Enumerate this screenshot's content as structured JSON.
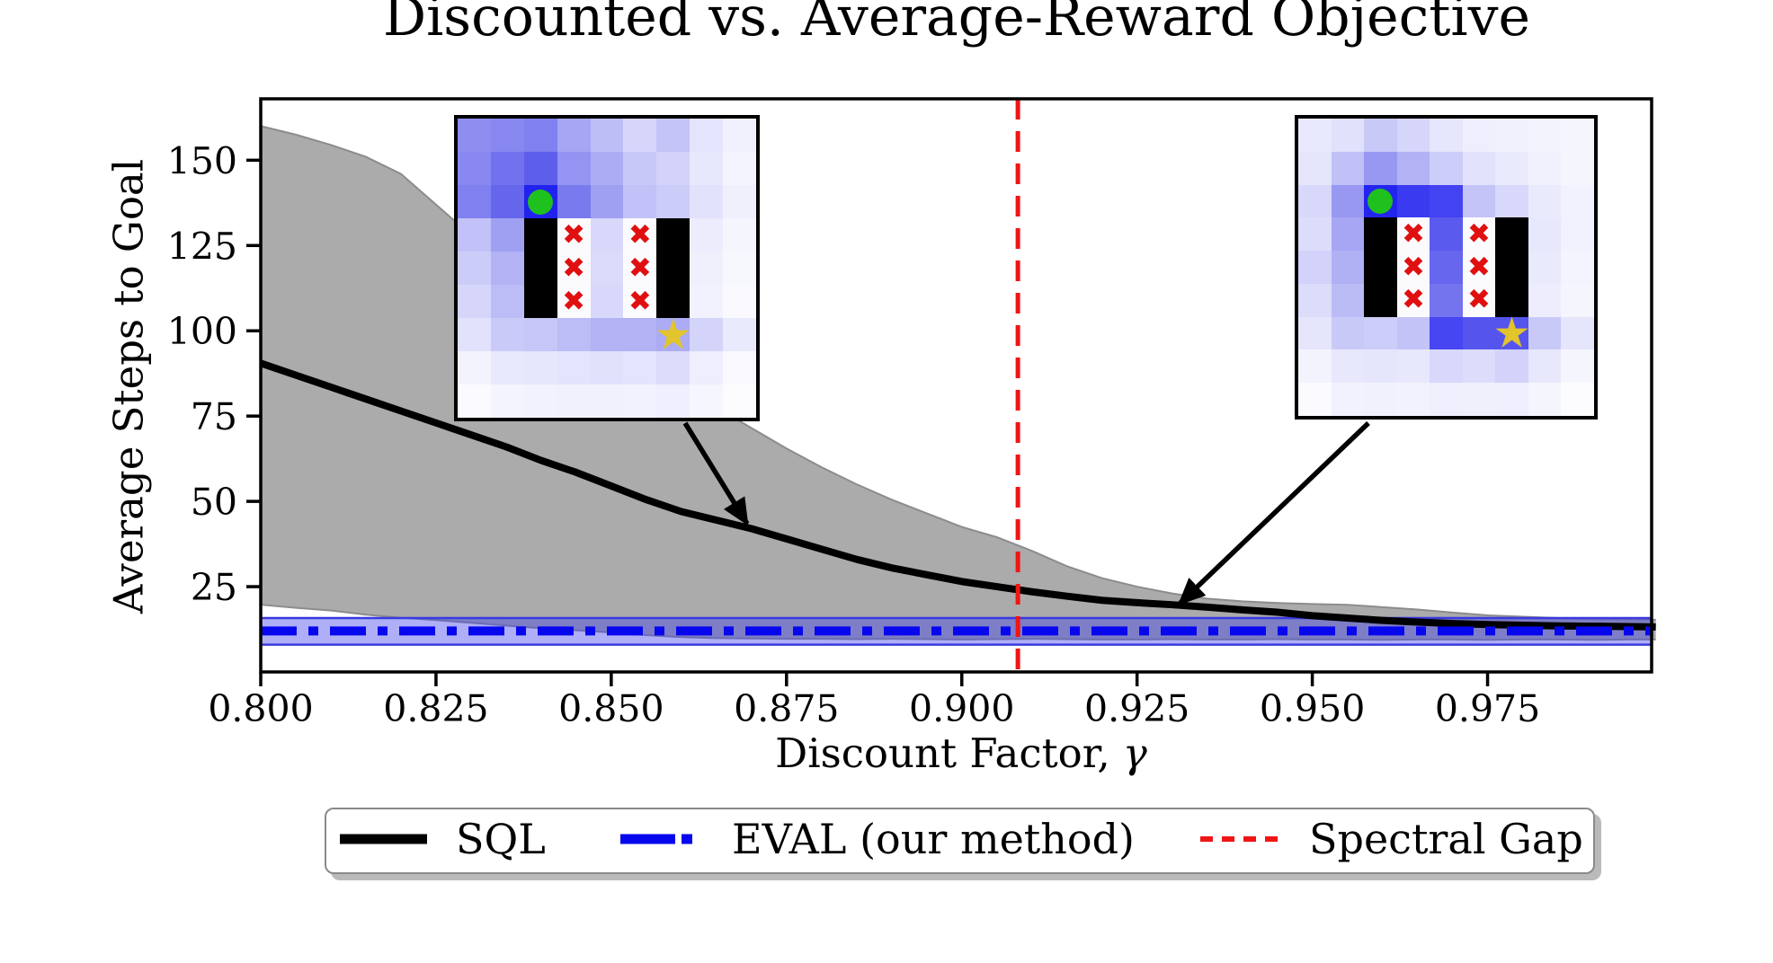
{
  "title": "Discounted vs. Average-Reward Objective",
  "axes": {
    "xlabel_text": "Discount Factor, ",
    "xlabel_gamma": "γ",
    "ylabel": "Average Steps to Goal",
    "x_ticks": [
      "0.800",
      "0.825",
      "0.850",
      "0.875",
      "0.900",
      "0.925",
      "0.950",
      "0.975"
    ],
    "y_ticks": [
      "25",
      "50",
      "75",
      "100",
      "125",
      "150"
    ]
  },
  "legend": {
    "items": [
      {
        "label": "SQL",
        "color": "#000000",
        "style": "solid"
      },
      {
        "label": "EVAL (our method)",
        "color": "#0707ee",
        "style": "dashdot"
      },
      {
        "label": "Spectral Gap",
        "color": "#f01515",
        "style": "dashed"
      }
    ]
  },
  "chart_data": {
    "type": "line",
    "title": "Discounted vs. Average-Reward Objective",
    "xlabel": "Discount Factor, γ",
    "ylabel": "Average Steps to Goal",
    "xlim": [
      0.8,
      0.9984
    ],
    "ylim": [
      0,
      168
    ],
    "grid": false,
    "legend_position": "bottom",
    "x_ticks": [
      0.8,
      0.825,
      0.85,
      0.875,
      0.9,
      0.925,
      0.95,
      0.975
    ],
    "y_ticks": [
      25,
      50,
      75,
      100,
      125,
      150
    ],
    "x": [
      0.8,
      0.805,
      0.81,
      0.815,
      0.82,
      0.825,
      0.83,
      0.835,
      0.84,
      0.845,
      0.85,
      0.855,
      0.86,
      0.865,
      0.87,
      0.875,
      0.88,
      0.885,
      0.89,
      0.895,
      0.9,
      0.905,
      0.91,
      0.915,
      0.92,
      0.925,
      0.93,
      0.935,
      0.94,
      0.945,
      0.95,
      0.955,
      0.96,
      0.965,
      0.97,
      0.975,
      0.98,
      0.985,
      0.99,
      0.995,
      0.999
    ],
    "series": [
      {
        "name": "SQL",
        "type": "line",
        "color": "#000000",
        "values": [
          90.5,
          87,
          83.5,
          80,
          76.5,
          73,
          69.5,
          66,
          62,
          58.5,
          54.5,
          50.5,
          47,
          44.5,
          42,
          39,
          36,
          33,
          30.5,
          28.5,
          26.5,
          25,
          23.5,
          22.2,
          21,
          20.3,
          19.7,
          19,
          18.2,
          17.5,
          16.5,
          15.8,
          15.1,
          14.6,
          14.2,
          13.9,
          13.7,
          13.5,
          13.4,
          13.3,
          13.2
        ]
      },
      {
        "name": "SQL band upper",
        "type": "band-edge",
        "values": [
          160,
          157.5,
          154.5,
          151,
          146,
          137,
          128,
          120,
          112.5,
          105,
          98,
          91,
          84,
          77.5,
          71.5,
          65.5,
          60,
          55,
          50.5,
          46.5,
          42.5,
          39.5,
          35.5,
          31,
          27.5,
          25,
          23,
          21.5,
          20.7,
          20.2,
          19.9,
          19.7,
          19,
          18.3,
          17.4,
          16.6,
          16.2,
          15.8,
          15.5,
          15.4,
          15.3
        ]
      },
      {
        "name": "SQL band lower",
        "type": "band-edge",
        "values": [
          19.7,
          18.8,
          18,
          16.8,
          15.9,
          15.2,
          14.4,
          13.6,
          12.8,
          12.2,
          11.6,
          10.8,
          10.2,
          9.9,
          9.8,
          9.7,
          9.7,
          9.6,
          9.7,
          9.6,
          9.5,
          9.6,
          9.7,
          9.6,
          9.5,
          9.5,
          9.6,
          9.5,
          9.5,
          9.6,
          9.5,
          9.5,
          9.4,
          9.5,
          9.5,
          9.4,
          9.5,
          9.5,
          9.4,
          9.5,
          9.5
        ]
      },
      {
        "name": "EVAL (our method)",
        "type": "hline",
        "color": "#0707ee",
        "value": 12
      },
      {
        "name": "EVAL band",
        "type": "hband",
        "upper": 15.8,
        "lower": 8,
        "fill": "rgba(64,64,238,0.42)",
        "edge": "#3a3ae0"
      },
      {
        "name": "Spectral Gap",
        "type": "vline",
        "color": "#f01515",
        "x": 0.908
      }
    ],
    "sql_band_fill": "#ababab",
    "sql_band_edge": "#8c8c8c"
  },
  "insets": {
    "rows": 9,
    "cols": 9,
    "markers": {
      "start_color": "#1fc11f",
      "goal_color": "#e2c42d",
      "x_color": "#e01010"
    },
    "icons": {
      "x_mark": "✖",
      "goal_star": "★"
    },
    "left": {
      "grid": [
        [
          "#8e8ef1",
          "#8888f0",
          "#8080f0",
          "#a6a6f4",
          "#bebef7",
          "#d6d6fa",
          "#c4c4f8",
          "#e4e4fc",
          "#f1f1fd"
        ],
        [
          "#8888f0",
          "#7272ee",
          "#5e5eed",
          "#9494f2",
          "#acacf5",
          "#c8c8f8",
          "#d2d2fa",
          "#e8e8fd",
          "#f4f4fe"
        ],
        [
          "#8080f0",
          "#6666ed",
          "#2222ee",
          "#7a7aef",
          "#a0a0f3",
          "#c2c2f8",
          "#ccccf9",
          "#e2e2fc",
          "#f0f0fd"
        ],
        [
          "#c2c2f8",
          "#a0a0f3",
          "#000000",
          "#fbfbfe",
          "#d8d8fb",
          "#fbfbfe",
          "#000000",
          "#ececfd",
          "#f5f5fe"
        ],
        [
          "#ccccf9",
          "#b2b2f5",
          "#000000",
          "#fbfbfe",
          "#dadafb",
          "#fbfbfe",
          "#000000",
          "#f0f0fd",
          "#f7f7fe"
        ],
        [
          "#d6d6fa",
          "#bcbcf6",
          "#000000",
          "#fbfbfe",
          "#d8d8fb",
          "#fbfbfe",
          "#000000",
          "#f2f2fe",
          "#f9f9fe"
        ],
        [
          "#e2e2fc",
          "#cacaf9",
          "#c6c6f8",
          "#bcbcf6",
          "#b2b2f5",
          "#b2b2f5",
          "#acacf4",
          "#d4d4fa",
          "#eaeafd"
        ],
        [
          "#f3f3fe",
          "#e9e9fd",
          "#e6e6fc",
          "#e4e4fc",
          "#e1e1fc",
          "#e4e4fc",
          "#dcdcfb",
          "#eeeefd",
          "#f8f8fe"
        ],
        [
          "#fafaff",
          "#f4f4fe",
          "#f2f2fe",
          "#f1f1fd",
          "#f1f1fd",
          "#f2f2fe",
          "#efeffd",
          "#f6f6fe",
          "#fcfcff"
        ]
      ],
      "start": [
        2,
        2
      ],
      "goal": [
        6,
        6
      ],
      "x_marks": [
        [
          3,
          3
        ],
        [
          4,
          3
        ],
        [
          5,
          3
        ],
        [
          3,
          5
        ],
        [
          4,
          5
        ],
        [
          5,
          5
        ]
      ]
    },
    "right": {
      "grid": [
        [
          "#e9e9fd",
          "#e1e1fc",
          "#c9c9f8",
          "#d6d6fa",
          "#e6e6fc",
          "#eeeefd",
          "#f1f1fd",
          "#f3f3fe",
          "#f5f5fe"
        ],
        [
          "#e5e5fc",
          "#c1c1f7",
          "#9898f2",
          "#b2b2f5",
          "#cdcdf9",
          "#e2e2fc",
          "#eaeafd",
          "#f1f1fd",
          "#f5f5fe"
        ],
        [
          "#d8d8fa",
          "#9898f2",
          "#2424ef",
          "#3a3af1",
          "#4343f2",
          "#c4c4f8",
          "#d8d8fb",
          "#eaeafd",
          "#f2f2fe"
        ],
        [
          "#dcdcfb",
          "#a6a6f4",
          "#000000",
          "#fbfbfe",
          "#5a5aee",
          "#fbfbfe",
          "#000000",
          "#e8e8fd",
          "#f2f2fe"
        ],
        [
          "#d2d2fa",
          "#b0b0f5",
          "#000000",
          "#fbfbfe",
          "#6666ee",
          "#fbfbfe",
          "#000000",
          "#eaeafd",
          "#f4f4fe"
        ],
        [
          "#dcdcfb",
          "#bbbbf6",
          "#000000",
          "#fbfbfe",
          "#7474ef",
          "#fbfbfe",
          "#000000",
          "#ededfd",
          "#f5f5fe"
        ],
        [
          "#e5e5fc",
          "#c9c9f8",
          "#cdcdf9",
          "#c3c3f8",
          "#4646f2",
          "#5555ee",
          "#5555ee",
          "#c9c9f8",
          "#e5e5fc"
        ],
        [
          "#f3f3fe",
          "#e8e8fd",
          "#e5e5fc",
          "#e8e8fd",
          "#d8d8fb",
          "#dcdcfb",
          "#d2d2fa",
          "#e8e8fd",
          "#f5f5fe"
        ],
        [
          "#fafaff",
          "#f2f2fe",
          "#f1f1fd",
          "#f2f2fe",
          "#eeeefd",
          "#f0f0fd",
          "#eeeefd",
          "#f5f5fe",
          "#fcfcff"
        ]
      ],
      "start": [
        2,
        2
      ],
      "goal": [
        6,
        6
      ],
      "x_marks": [
        [
          3,
          3
        ],
        [
          4,
          3
        ],
        [
          5,
          3
        ],
        [
          3,
          5
        ],
        [
          4,
          5
        ],
        [
          5,
          5
        ]
      ]
    }
  }
}
